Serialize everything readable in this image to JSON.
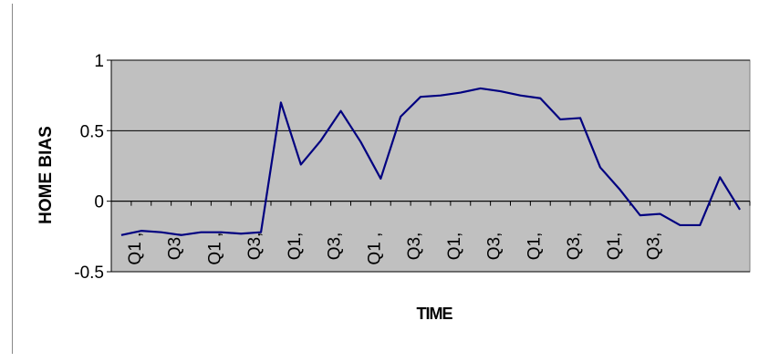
{
  "chart_data": {
    "type": "line",
    "title": "",
    "xlabel": "TIME",
    "ylabel": "HOME BIAS",
    "ylim": [
      -0.5,
      1
    ],
    "yticks": [
      -0.5,
      0,
      0.5,
      1
    ],
    "ytick_labels": [
      "-0.5",
      "0",
      "0.5",
      "1"
    ],
    "xtick_labels": [
      "Q1 ,",
      "Q3,",
      "Q1 ,",
      "Q3,",
      "Q1,",
      "Q3,",
      "Q1 ,",
      "Q3,",
      "Q1,",
      "Q3,",
      "Q1,",
      "Q3,",
      "Q1,",
      "Q3,"
    ],
    "grid": "horizontal major gridlines",
    "legend": "none",
    "plot_background": "#c0c0c0",
    "series": [
      {
        "color": "#000080",
        "values": [
          -0.24,
          -0.21,
          -0.22,
          -0.24,
          -0.22,
          -0.22,
          -0.23,
          -0.22,
          0.7,
          0.26,
          0.43,
          0.64,
          0.42,
          0.16,
          0.6,
          0.74,
          0.75,
          0.77,
          0.8,
          0.78,
          0.75,
          0.73,
          0.58,
          0.59,
          0.24,
          0.08,
          -0.1,
          -0.09,
          -0.17,
          -0.17,
          0.17,
          -0.06
        ]
      }
    ]
  }
}
